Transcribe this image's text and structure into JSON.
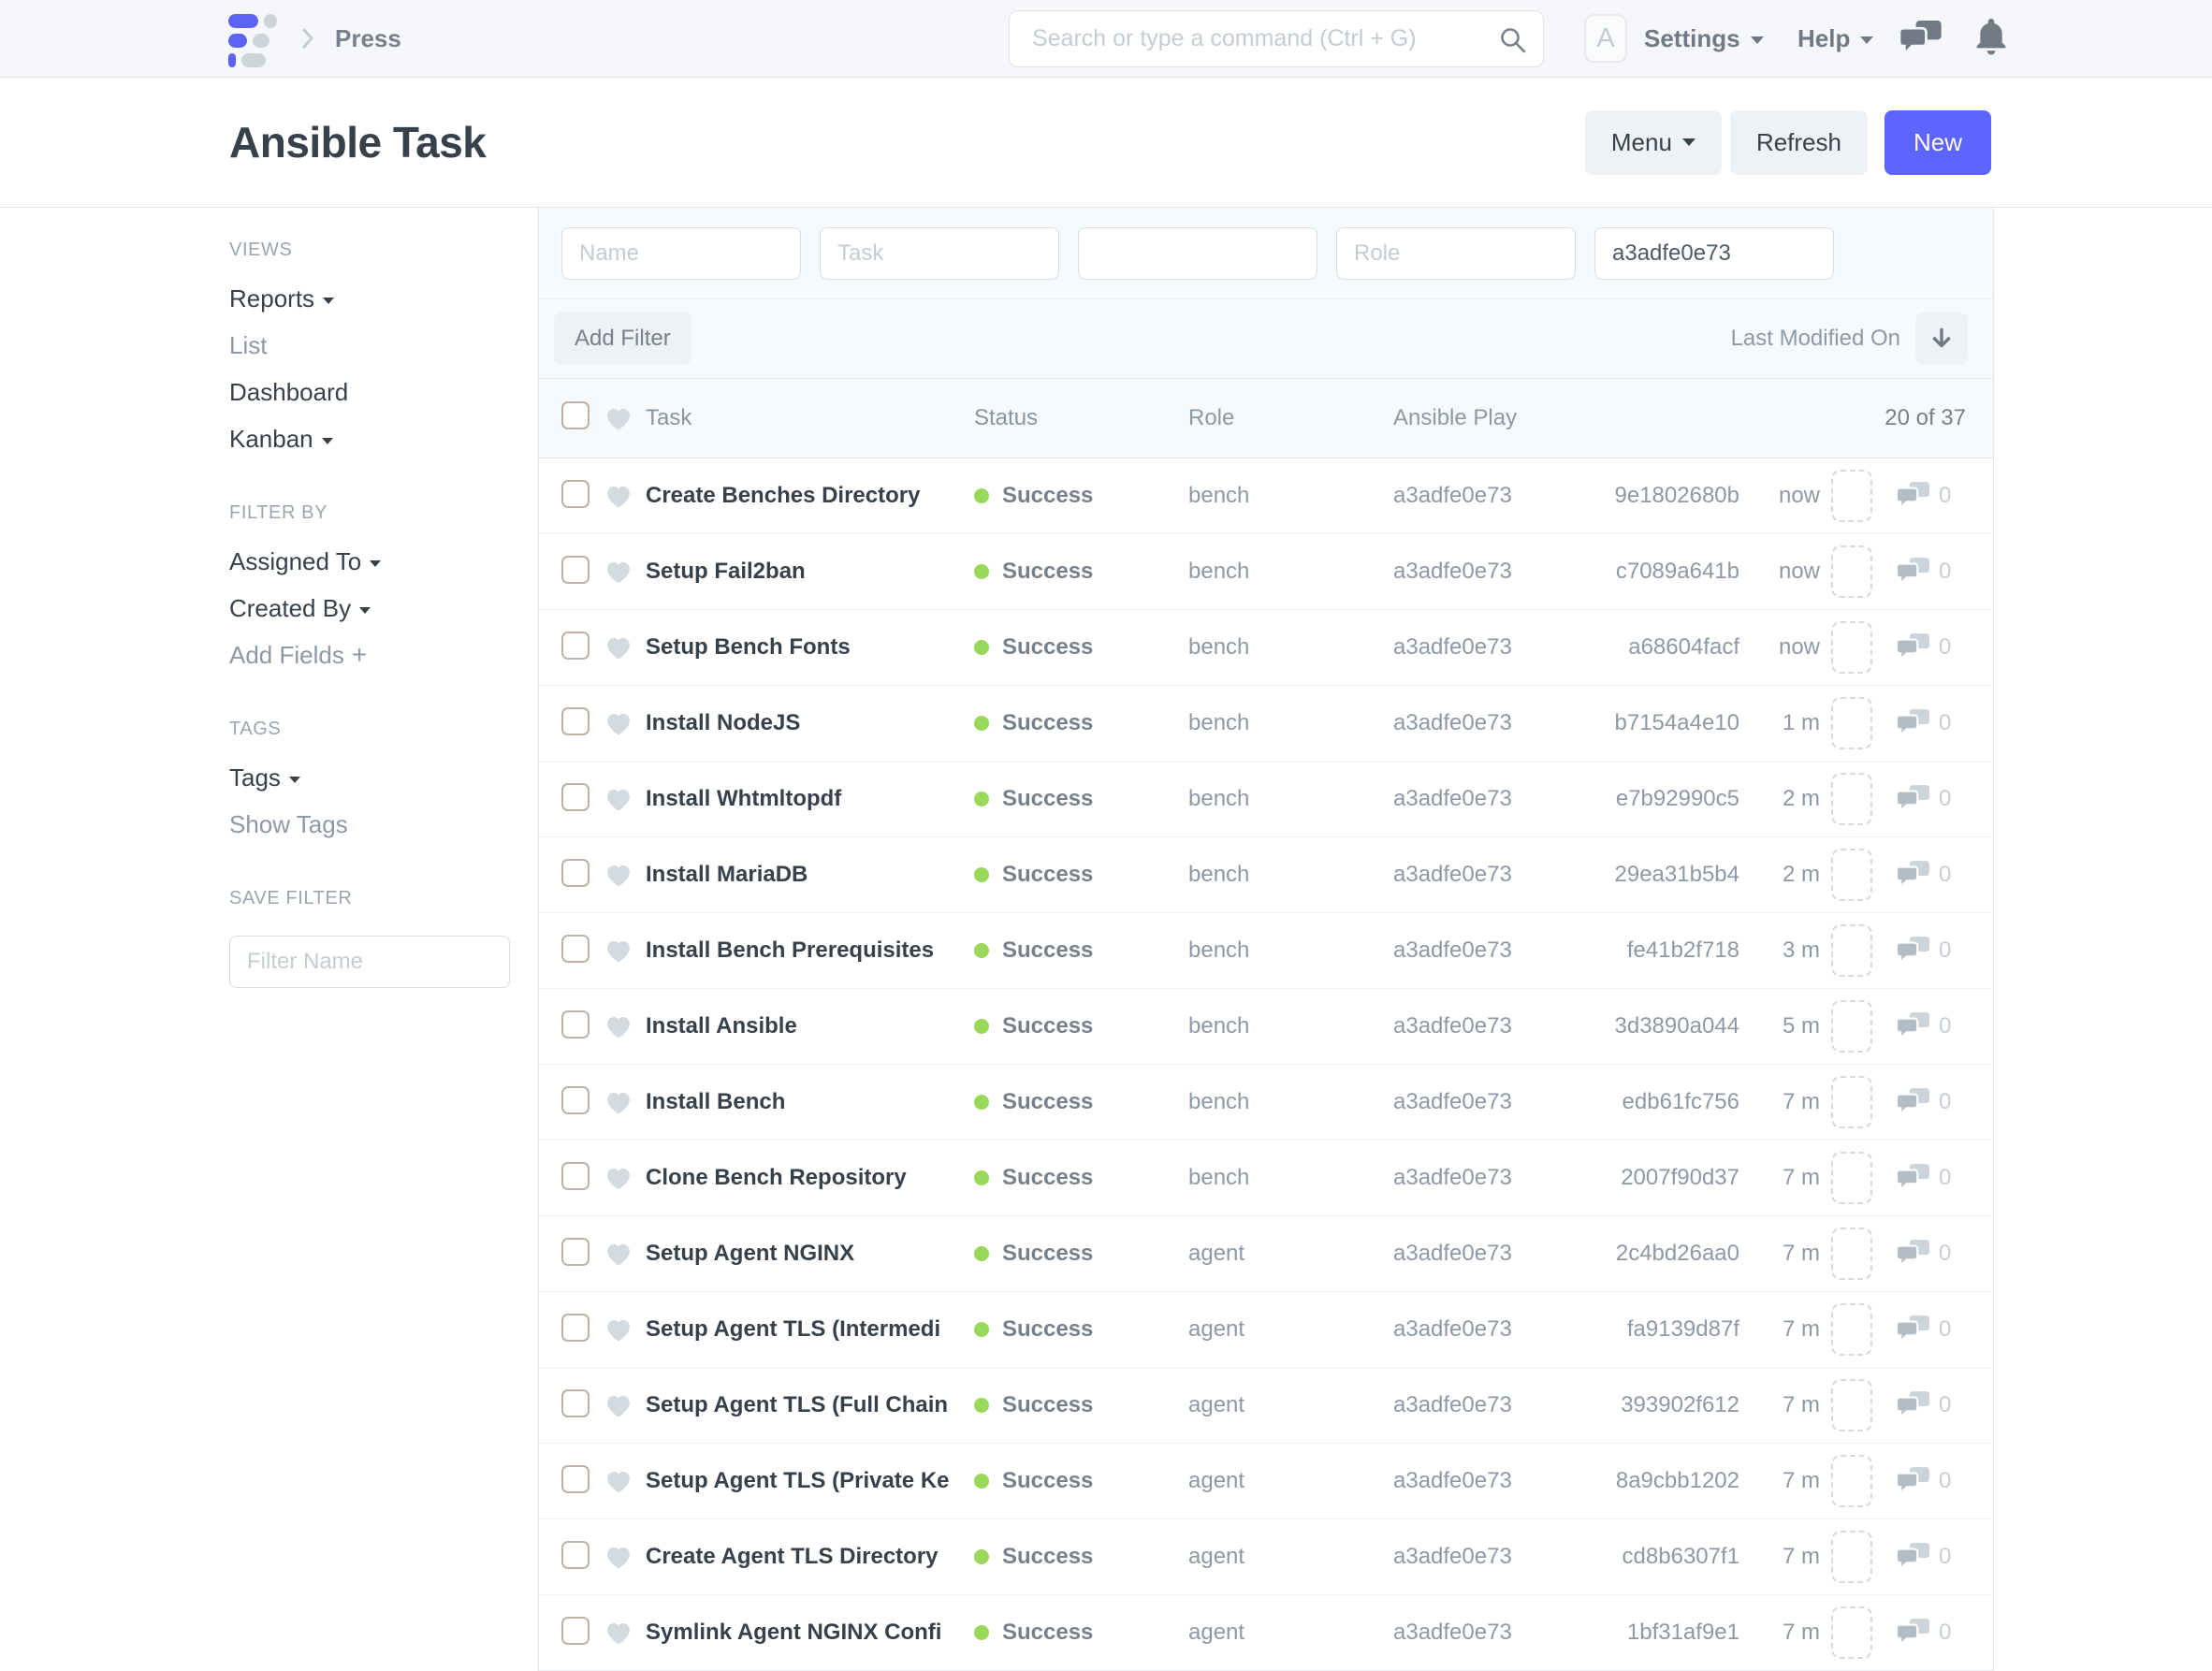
{
  "colors": {
    "accent": "#5e64ff",
    "success": "#98d85b"
  },
  "navbar": {
    "breadcrumb": "Press",
    "search_placeholder": "Search or type a command (Ctrl + G)",
    "avatar_letter": "A",
    "settings_label": "Settings",
    "help_label": "Help"
  },
  "header": {
    "title": "Ansible Task",
    "menu_label": "Menu",
    "refresh_label": "Refresh",
    "new_label": "New"
  },
  "sidebar": {
    "sections": [
      {
        "heading": "VIEWS",
        "items": [
          {
            "label": "Reports",
            "caret": true
          },
          {
            "label": "List",
            "muted": true
          },
          {
            "label": "Dashboard"
          },
          {
            "label": "Kanban",
            "caret": true
          }
        ]
      },
      {
        "heading": "FILTER BY",
        "items": [
          {
            "label": "Assigned To",
            "caret": true
          },
          {
            "label": "Created By",
            "caret": true
          },
          {
            "label": "Add Fields",
            "plus": true,
            "muted": true
          }
        ]
      },
      {
        "heading": "TAGS",
        "items": [
          {
            "label": "Tags",
            "caret": true
          },
          {
            "label": "Show Tags",
            "muted": true
          }
        ]
      }
    ],
    "save_filter_heading": "SAVE FILTER",
    "save_filter_placeholder": "Filter Name"
  },
  "filters": {
    "add_filter_label": "Add Filter",
    "sort_label": "Last Modified On",
    "fields": [
      {
        "placeholder": "Name"
      },
      {
        "placeholder": "Task"
      },
      {
        "placeholder": ""
      },
      {
        "placeholder": "Role"
      },
      {
        "placeholder": "",
        "value": "a3adfe0e73"
      }
    ]
  },
  "list": {
    "columns": {
      "task": "Task",
      "status": "Status",
      "role": "Role",
      "play": "Ansible Play"
    },
    "count": "20 of 37",
    "rows": [
      {
        "task": "Create Benches Directory",
        "status": "Success",
        "role": "bench",
        "play": "a3adfe0e73",
        "hash": "9e1802680b",
        "modified": "now",
        "comments": "0"
      },
      {
        "task": "Setup Fail2ban",
        "status": "Success",
        "role": "bench",
        "play": "a3adfe0e73",
        "hash": "c7089a641b",
        "modified": "now",
        "comments": "0"
      },
      {
        "task": "Setup Bench Fonts",
        "status": "Success",
        "role": "bench",
        "play": "a3adfe0e73",
        "hash": "a68604facf",
        "modified": "now",
        "comments": "0"
      },
      {
        "task": "Install NodeJS",
        "status": "Success",
        "role": "bench",
        "play": "a3adfe0e73",
        "hash": "b7154a4e10",
        "modified": "1 m",
        "comments": "0"
      },
      {
        "task": "Install Whtmltopdf",
        "status": "Success",
        "role": "bench",
        "play": "a3adfe0e73",
        "hash": "e7b92990c5",
        "modified": "2 m",
        "comments": "0"
      },
      {
        "task": "Install MariaDB",
        "status": "Success",
        "role": "bench",
        "play": "a3adfe0e73",
        "hash": "29ea31b5b4",
        "modified": "2 m",
        "comments": "0"
      },
      {
        "task": "Install Bench Prerequisites",
        "status": "Success",
        "role": "bench",
        "play": "a3adfe0e73",
        "hash": "fe41b2f718",
        "modified": "3 m",
        "comments": "0"
      },
      {
        "task": "Install Ansible",
        "status": "Success",
        "role": "bench",
        "play": "a3adfe0e73",
        "hash": "3d3890a044",
        "modified": "5 m",
        "comments": "0"
      },
      {
        "task": "Install Bench",
        "status": "Success",
        "role": "bench",
        "play": "a3adfe0e73",
        "hash": "edb61fc756",
        "modified": "7 m",
        "comments": "0"
      },
      {
        "task": "Clone Bench Repository",
        "status": "Success",
        "role": "bench",
        "play": "a3adfe0e73",
        "hash": "2007f90d37",
        "modified": "7 m",
        "comments": "0"
      },
      {
        "task": "Setup Agent NGINX",
        "status": "Success",
        "role": "agent",
        "play": "a3adfe0e73",
        "hash": "2c4bd26aa0",
        "modified": "7 m",
        "comments": "0"
      },
      {
        "task": "Setup Agent TLS (Intermedi",
        "status": "Success",
        "role": "agent",
        "play": "a3adfe0e73",
        "hash": "fa9139d87f",
        "modified": "7 m",
        "comments": "0"
      },
      {
        "task": "Setup Agent TLS (Full Chain",
        "status": "Success",
        "role": "agent",
        "play": "a3adfe0e73",
        "hash": "393902f612",
        "modified": "7 m",
        "comments": "0"
      },
      {
        "task": "Setup Agent TLS (Private Ke",
        "status": "Success",
        "role": "agent",
        "play": "a3adfe0e73",
        "hash": "8a9cbb1202",
        "modified": "7 m",
        "comments": "0"
      },
      {
        "task": "Create Agent TLS Directory",
        "status": "Success",
        "role": "agent",
        "play": "a3adfe0e73",
        "hash": "cd8b6307f1",
        "modified": "7 m",
        "comments": "0"
      },
      {
        "task": "Symlink Agent NGINX Confi",
        "status": "Success",
        "role": "agent",
        "play": "a3adfe0e73",
        "hash": "1bf31af9e1",
        "modified": "7 m",
        "comments": "0"
      }
    ]
  },
  "icons": {
    "search": "magnifier",
    "navbar_chat": "speech-bubbles",
    "navbar_bell": "bell",
    "favourite": "heart",
    "comment": "speech-bubbles",
    "sort_direction": "arrow-down",
    "caret": "triangle-down",
    "breadcrumb_chevron": "chevron-right",
    "add_fields": "plus"
  }
}
